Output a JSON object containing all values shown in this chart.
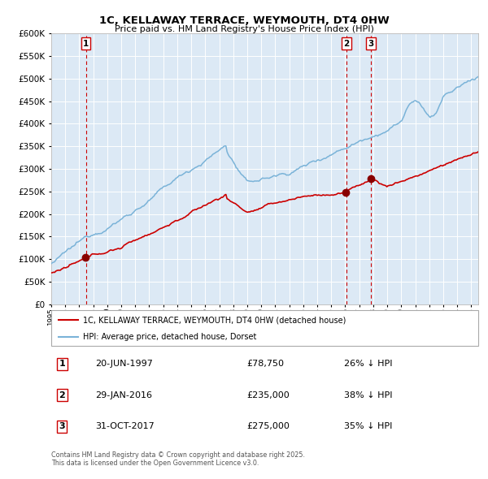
{
  "title": "1C, KELLAWAY TERRACE, WEYMOUTH, DT4 0HW",
  "subtitle": "Price paid vs. HM Land Registry's House Price Index (HPI)",
  "legend_label_red": "1C, KELLAWAY TERRACE, WEYMOUTH, DT4 0HW (detached house)",
  "legend_label_blue": "HPI: Average price, detached house, Dorset",
  "footnote1": "Contains HM Land Registry data © Crown copyright and database right 2025.",
  "footnote2": "This data is licensed under the Open Government Licence v3.0.",
  "transactions": [
    {
      "num": 1,
      "date": "20-JUN-1997",
      "price": 78750,
      "pct": "26%",
      "direction": "↓",
      "year_x": 1997.47
    },
    {
      "num": 2,
      "date": "29-JAN-2016",
      "price": 235000,
      "pct": "38%",
      "direction": "↓",
      "year_x": 2016.08
    },
    {
      "num": 3,
      "date": "31-OCT-2017",
      "price": 275000,
      "pct": "35%",
      "direction": "↓",
      "year_x": 2017.83
    }
  ],
  "ylim": [
    0,
    600000
  ],
  "xlim_start": 1995.0,
  "xlim_end": 2025.5,
  "bg_color": "#dce9f5",
  "red_color": "#cc0000",
  "blue_color": "#7ab3d8",
  "grid_color": "#ffffff",
  "vline_color": "#cc0000",
  "marker_color": "#880000"
}
